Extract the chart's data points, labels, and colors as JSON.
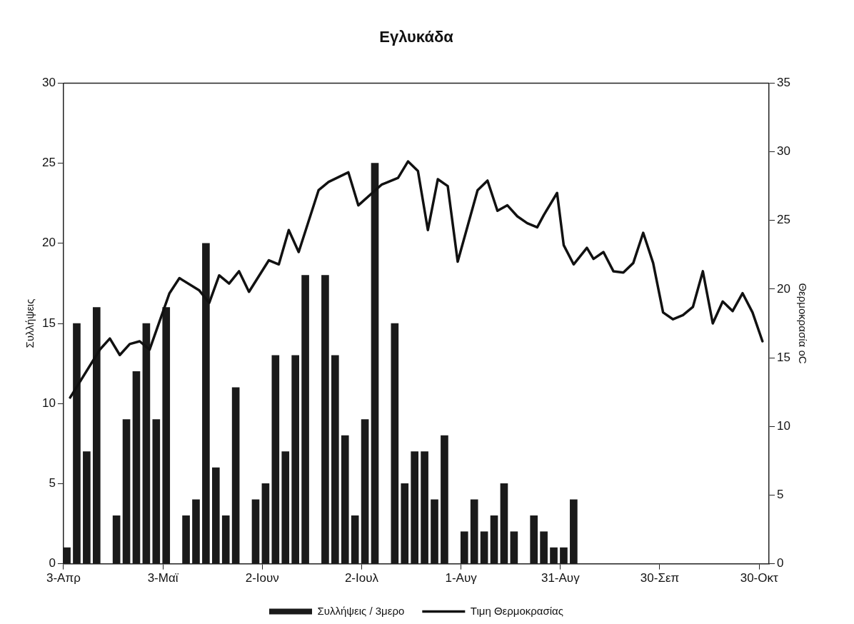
{
  "chart_data": {
    "type": "bar",
    "title": "Εγλυκάδα",
    "ylabel": "Συλλήψεις",
    "y2label": "Θερμοκρασία oC",
    "xlim": [
      "--04-03",
      "--11-02"
    ],
    "xticks": [
      {
        "value": "--04-03",
        "label": "3-Απρ"
      },
      {
        "value": "--05-03",
        "label": "3-Μαϊ"
      },
      {
        "value": "--06-02",
        "label": "2-Ιουν"
      },
      {
        "value": "--07-02",
        "label": "2-Ιουλ"
      },
      {
        "value": "--08-01",
        "label": "1-Αυγ"
      },
      {
        "value": "--08-31",
        "label": "31-Αυγ"
      },
      {
        "value": "--09-30",
        "label": "30-Σεπ"
      },
      {
        "value": "--10-30",
        "label": "30-Οκτ"
      }
    ],
    "ylim": [
      0,
      30
    ],
    "yticks": [
      0,
      5,
      10,
      15,
      20,
      25,
      30
    ],
    "y2lim": [
      0,
      35
    ],
    "y2ticks": [
      0,
      5,
      10,
      15,
      20,
      25,
      30,
      35
    ],
    "grid": false,
    "legend": "bottom",
    "series": [
      {
        "name": "Συλλήψεις / 3μερο",
        "color": "#1a1a1a",
        "x": [
          "--04-04",
          "--04-07",
          "--04-10",
          "--04-13",
          "--04-19",
          "--04-22",
          "--04-25",
          "--04-28",
          "--05-01",
          "--05-04",
          "--05-10",
          "--05-13",
          "--05-16",
          "--05-19",
          "--05-22",
          "--05-25",
          "--05-31",
          "--06-03",
          "--06-06",
          "--06-09",
          "--06-12",
          "--06-15",
          "--06-21",
          "--06-24",
          "--06-27",
          "--06-30",
          "--07-03",
          "--07-06",
          "--07-12",
          "--07-15",
          "--07-18",
          "--07-21",
          "--07-24",
          "--07-27",
          "--08-02",
          "--08-05",
          "--08-08",
          "--08-11",
          "--08-14",
          "--08-17",
          "--08-23",
          "--08-26",
          "--08-29",
          "--09-01",
          "--09-04"
        ],
        "values": [
          1,
          15,
          7,
          16,
          3,
          9,
          12,
          15,
          9,
          16,
          3,
          4,
          20,
          6,
          3,
          11,
          4,
          5,
          13,
          7,
          13,
          18,
          18,
          13,
          8,
          3,
          9,
          25,
          15,
          5,
          7,
          7,
          4,
          8,
          2,
          4,
          2,
          3,
          5,
          2,
          3,
          2,
          1,
          1,
          4
        ]
      },
      {
        "name": "Τιμη Θερμοκρασίας",
        "type": "line",
        "axis": "y2",
        "color": "#111111",
        "x": [
          "--04-05",
          "--04-14",
          "--04-17",
          "--04-20",
          "--04-23",
          "--04-26",
          "--04-29",
          "--05-05",
          "--05-08",
          "--05-14",
          "--05-17",
          "--05-20",
          "--05-23",
          "--05-26",
          "--05-29",
          "--06-04",
          "--06-07",
          "--06-10",
          "--06-13",
          "--06-19",
          "--06-22",
          "--06-28",
          "--07-01",
          "--07-08",
          "--07-10",
          "--07-13",
          "--07-16",
          "--07-19",
          "--07-22",
          "--07-25",
          "--07-28",
          "--07-31",
          "--08-03",
          "--08-06",
          "--08-09",
          "--08-12",
          "--08-15",
          "--08-18",
          "--08-21",
          "--08-24",
          "--08-26",
          "--08-30",
          "--09-01",
          "--09-04",
          "--09-08",
          "--09-10",
          "--09-13",
          "--09-16",
          "--09-19",
          "--09-22",
          "--09-25",
          "--09-28",
          "--10-01",
          "--10-04",
          "--10-07",
          "--10-10",
          "--10-13",
          "--10-16",
          "--10-19",
          "--10-22",
          "--10-25",
          "--10-28",
          "--10-31"
        ],
        "values": [
          12.1,
          15.6,
          16.4,
          15.2,
          16.0,
          16.2,
          15.6,
          19.7,
          20.8,
          19.9,
          19.0,
          21.0,
          20.4,
          21.3,
          19.8,
          22.1,
          21.8,
          24.3,
          22.7,
          27.2,
          27.8,
          28.5,
          26.1,
          27.6,
          27.8,
          28.1,
          29.3,
          28.6,
          24.3,
          28.0,
          27.5,
          22.0,
          24.6,
          27.2,
          27.9,
          25.7,
          26.1,
          25.3,
          24.8,
          24.5,
          25.4,
          27.0,
          23.2,
          21.8,
          23.0,
          22.2,
          22.7,
          21.3,
          21.2,
          21.9,
          24.1,
          21.9,
          18.3,
          17.8,
          18.1,
          18.7,
          21.3,
          17.5,
          19.1,
          18.4,
          19.7,
          18.3,
          16.2
        ]
      }
    ]
  }
}
